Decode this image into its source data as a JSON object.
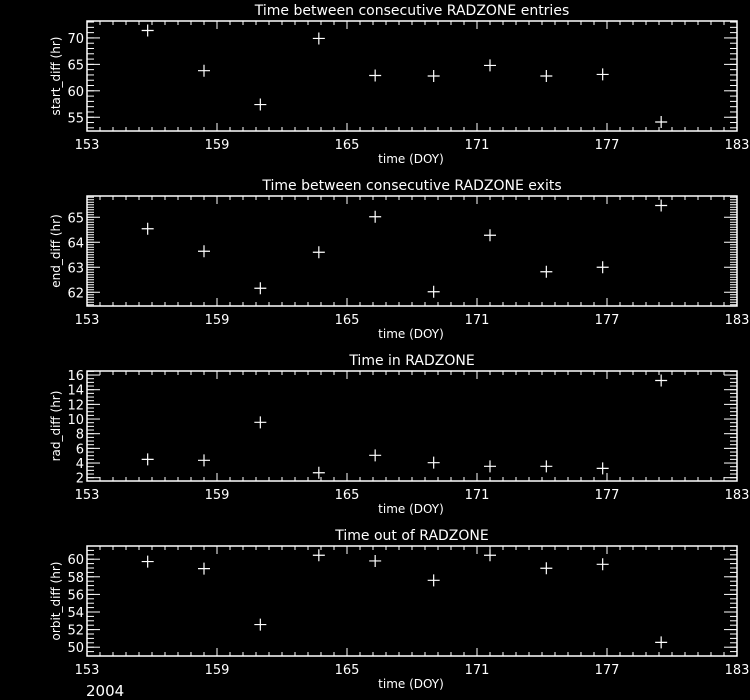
{
  "footer": {
    "year": "2004"
  },
  "colors": {
    "background": "#000000",
    "foreground": "#ffffff"
  },
  "chart_data": [
    {
      "type": "scatter",
      "title": "Time between consecutive RADZONE entries",
      "xlabel": "time (DOY)",
      "ylabel": "start_diff (hr)",
      "xlim": [
        153,
        183
      ],
      "ylim": [
        52.4,
        73.2
      ],
      "xticks": [
        "153",
        "159",
        "165",
        "171",
        "177",
        "183"
      ],
      "yticks": [
        55,
        60,
        65,
        70
      ],
      "yminor": 1,
      "marker": "plus",
      "x": [
        155.8,
        158.4,
        161.0,
        163.7,
        166.3,
        169.0,
        171.6,
        174.2,
        176.8,
        179.5
      ],
      "y": [
        71.4,
        63.8,
        57.4,
        69.9,
        62.9,
        62.8,
        64.8,
        62.8,
        63.1,
        54.1
      ]
    },
    {
      "type": "scatter",
      "title": "Time between consecutive RADZONE exits",
      "xlabel": "time (DOY)",
      "ylabel": "end_diff (hr)",
      "xlim": [
        153,
        183
      ],
      "ylim": [
        61.45,
        65.85
      ],
      "xticks": [
        "153",
        "159",
        "165",
        "171",
        "177",
        "183"
      ],
      "yticks": [
        62,
        63,
        64,
        65
      ],
      "yminor": 0.1,
      "marker": "plus",
      "x": [
        155.8,
        158.4,
        161.0,
        163.7,
        166.3,
        169.0,
        171.6,
        174.2,
        176.8,
        179.5
      ],
      "y": [
        64.54,
        63.64,
        62.16,
        63.6,
        65.02,
        62.02,
        64.28,
        62.82,
        63.0,
        65.47
      ]
    },
    {
      "type": "scatter",
      "title": "Time in RADZONE",
      "xlabel": "time (DOY)",
      "ylabel": "rad_diff (hr)",
      "xlim": [
        153,
        183
      ],
      "ylim": [
        1.55,
        16.55
      ],
      "xticks": [
        "153",
        "159",
        "165",
        "171",
        "177",
        "183"
      ],
      "yticks": [
        2,
        4,
        6,
        8,
        10,
        12,
        14,
        16
      ],
      "yminor": 0.5,
      "marker": "plus",
      "x": [
        155.8,
        158.4,
        161.0,
        163.7,
        166.3,
        169.0,
        171.6,
        174.2,
        176.8,
        179.5
      ],
      "y": [
        4.5,
        4.37,
        9.55,
        2.68,
        5.05,
        4.05,
        3.55,
        3.55,
        3.27,
        15.25
      ]
    },
    {
      "type": "scatter",
      "title": "Time out of RADZONE",
      "xlabel": "time (DOY)",
      "ylabel": "orbit_diff (hr)",
      "xlim": [
        153,
        183
      ],
      "ylim": [
        49.0,
        61.5
      ],
      "xticks": [
        "153",
        "159",
        "165",
        "171",
        "177",
        "183"
      ],
      "yticks": [
        50,
        52,
        54,
        56,
        58,
        60
      ],
      "yminor": 0.5,
      "marker": "plus",
      "x": [
        155.8,
        158.4,
        161.0,
        163.7,
        166.3,
        169.0,
        171.6,
        174.2,
        176.8,
        179.5
      ],
      "y": [
        59.73,
        58.93,
        52.57,
        60.45,
        59.8,
        57.6,
        60.45,
        58.97,
        59.42,
        50.55
      ]
    }
  ]
}
